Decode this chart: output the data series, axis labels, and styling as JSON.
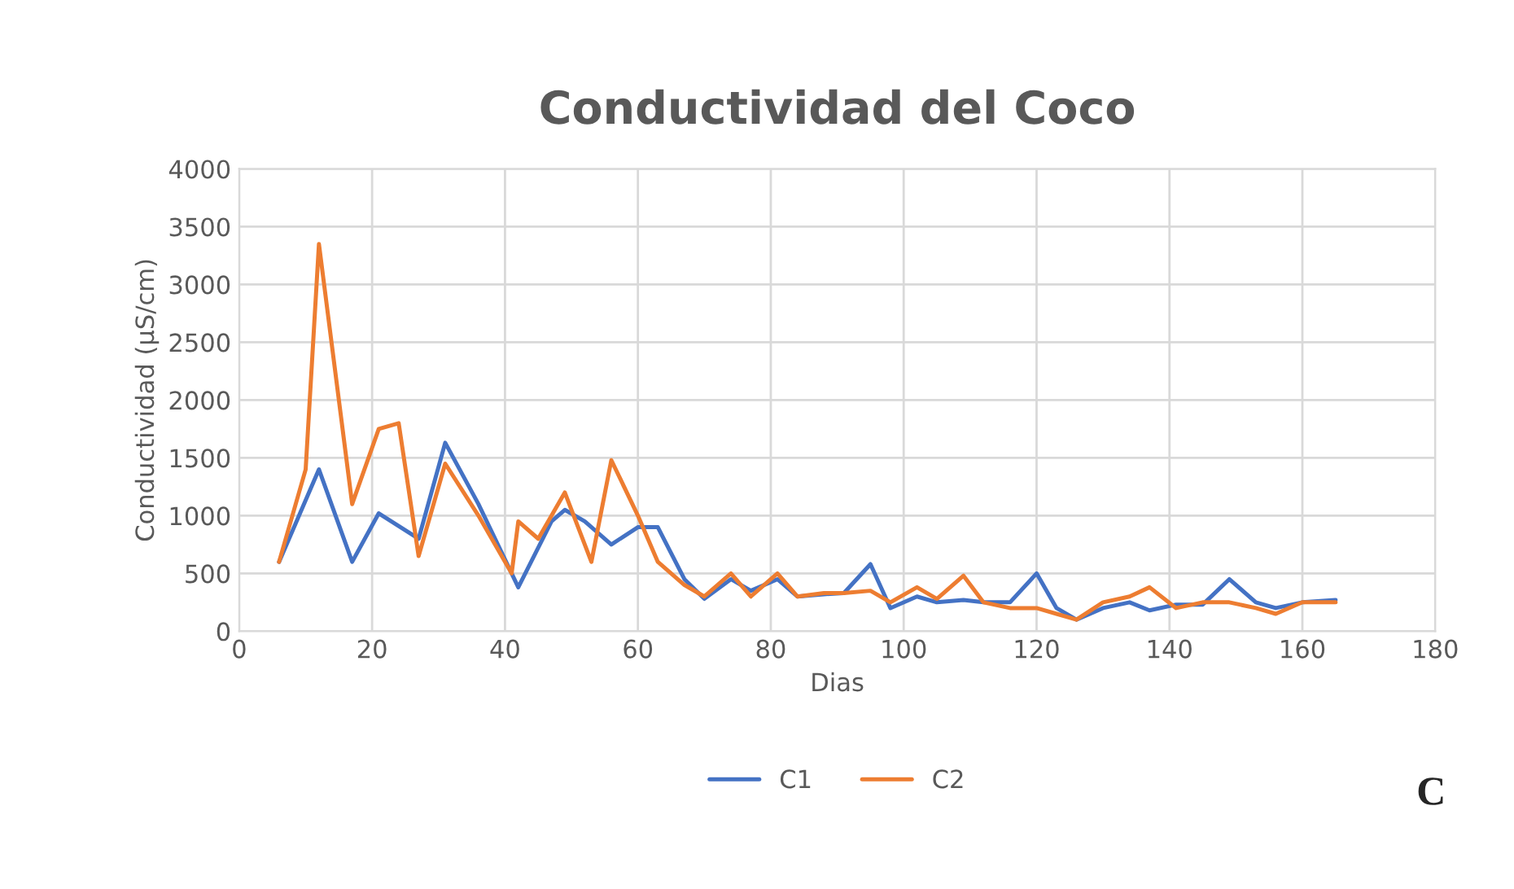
{
  "chart_data": {
    "type": "line",
    "title": "Conductividad del Coco",
    "xlabel": "Dias",
    "ylabel": "Conductividad (µS/cm)",
    "xlim": [
      0,
      180
    ],
    "xticks": [
      0,
      20,
      40,
      60,
      80,
      100,
      120,
      140,
      160,
      180
    ],
    "ylim": [
      0,
      4000
    ],
    "yticks": [
      0,
      500,
      1000,
      1500,
      2000,
      2500,
      3000,
      3500,
      4000
    ],
    "grid": true,
    "legend": "bottom",
    "annotations": [
      "C"
    ],
    "series": [
      {
        "name": "C1",
        "color": "#4472c4",
        "x": [
          6,
          12,
          17,
          21,
          27,
          31,
          36,
          42,
          47,
          49,
          52,
          56,
          60,
          63,
          67,
          70,
          74,
          77,
          81,
          84,
          88,
          91,
          95,
          98,
          102,
          105,
          109,
          112,
          116,
          120,
          123,
          126,
          130,
          134,
          137,
          141,
          145,
          149,
          153,
          156,
          160,
          165
        ],
        "values": [
          600,
          1400,
          600,
          1020,
          800,
          1630,
          1100,
          380,
          950,
          1050,
          950,
          750,
          900,
          900,
          450,
          280,
          450,
          350,
          450,
          300,
          320,
          330,
          580,
          200,
          300,
          250,
          270,
          250,
          250,
          500,
          200,
          100,
          200,
          250,
          180,
          230,
          230,
          450,
          250,
          200,
          250,
          270
        ]
      },
      {
        "name": "C2",
        "color": "#ed7d31",
        "x": [
          6,
          10,
          12,
          17,
          21,
          24,
          27,
          31,
          36,
          41,
          42,
          45,
          49,
          53,
          56,
          60,
          63,
          67,
          70,
          74,
          77,
          81,
          84,
          88,
          91,
          95,
          98,
          102,
          105,
          109,
          112,
          116,
          120,
          123,
          126,
          130,
          134,
          137,
          141,
          145,
          149,
          153,
          156,
          160,
          165
        ],
        "values": [
          600,
          1400,
          3350,
          1100,
          1750,
          1800,
          650,
          1450,
          1000,
          500,
          950,
          800,
          1200,
          600,
          1480,
          1000,
          600,
          400,
          300,
          500,
          300,
          500,
          300,
          330,
          330,
          350,
          250,
          380,
          280,
          480,
          250,
          200,
          200,
          150,
          100,
          250,
          300,
          380,
          200,
          250,
          250,
          200,
          150,
          250,
          250
        ]
      }
    ]
  }
}
